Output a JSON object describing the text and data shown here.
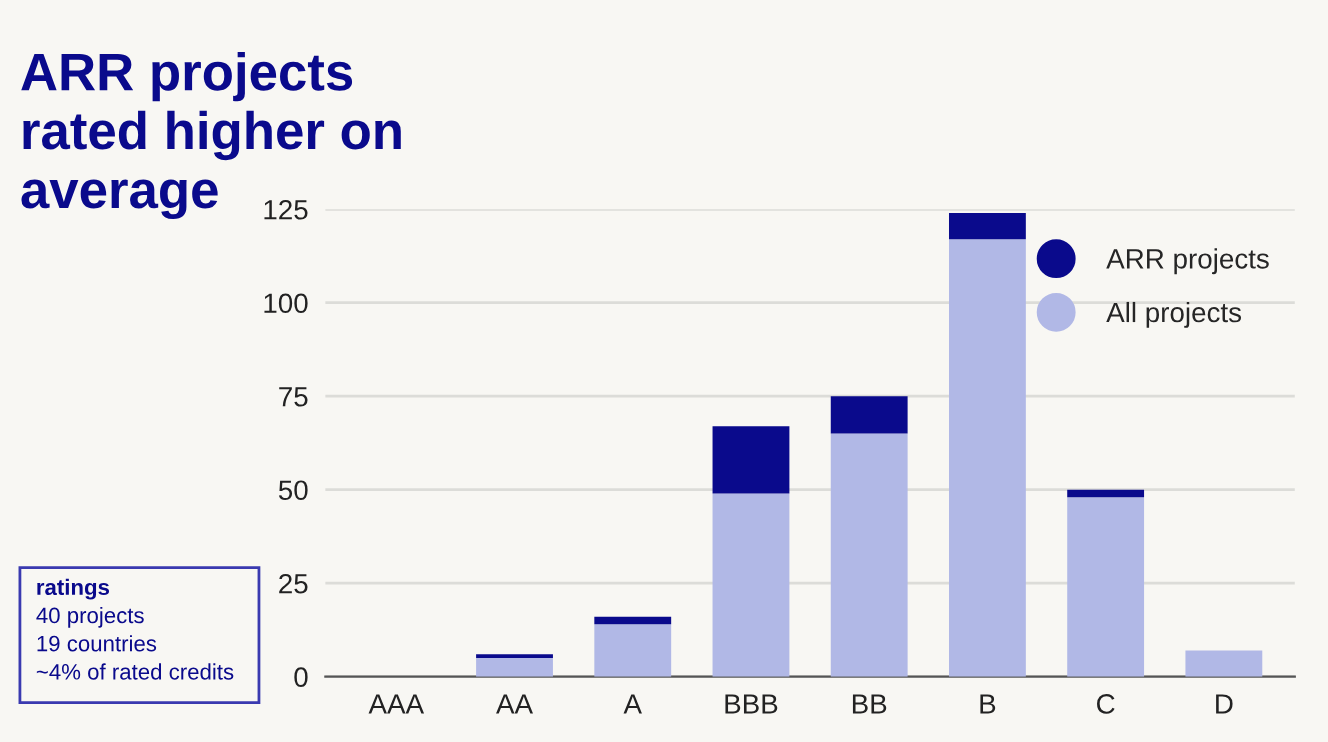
{
  "chart_data": {
    "type": "bar",
    "title": "ARR projects\nrated higher on\naverage",
    "categories": [
      "AAA",
      "AA",
      "A",
      "BBB",
      "BB",
      "B",
      "C",
      "D"
    ],
    "stacked": true,
    "series": [
      {
        "name": "All projects",
        "color": "#b1b8e6",
        "values": [
          0,
          5,
          14,
          49,
          65,
          117,
          48,
          7
        ]
      },
      {
        "name": "ARR projects",
        "color": "#0a0a8c",
        "values": [
          0,
          1,
          2,
          18,
          10,
          7,
          2,
          0
        ]
      }
    ],
    "ylim": [
      0,
      125
    ],
    "yticks": [
      0,
      25,
      50,
      75,
      100,
      125
    ],
    "grid": "y",
    "legend": "top right",
    "annotations": [
      "ratings",
      "40 projects",
      "19 countries",
      "~4% of rated credits"
    ]
  }
}
